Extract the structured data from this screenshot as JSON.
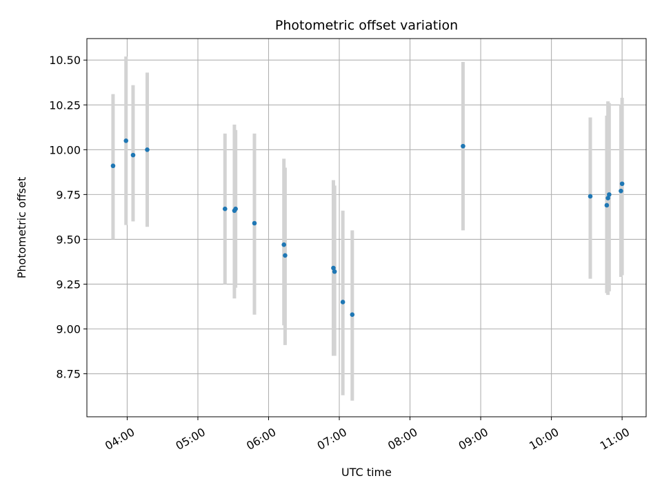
{
  "chart_data": {
    "type": "scatter",
    "title": "Photometric offset variation",
    "xlabel": "UTC time",
    "ylabel": "Photometric offset",
    "grid": true,
    "legend": "none",
    "x_axis": {
      "unit": "hours UTC",
      "range": [
        3.43,
        11.34
      ]
    },
    "ylim": [
      8.51,
      10.62
    ],
    "xticks": [
      {
        "value": 4,
        "label": "04:00"
      },
      {
        "value": 5,
        "label": "05:00"
      },
      {
        "value": 6,
        "label": "06:00"
      },
      {
        "value": 7,
        "label": "07:00"
      },
      {
        "value": 8,
        "label": "08:00"
      },
      {
        "value": 9,
        "label": "09:00"
      },
      {
        "value": 10,
        "label": "10:00"
      },
      {
        "value": 11,
        "label": "11:00"
      }
    ],
    "yticks": [
      {
        "value": 8.75,
        "label": "8.75"
      },
      {
        "value": 9.0,
        "label": "9.00"
      },
      {
        "value": 9.25,
        "label": "9.25"
      },
      {
        "value": 9.5,
        "label": "9.50"
      },
      {
        "value": 9.75,
        "label": "9.75"
      },
      {
        "value": 10.0,
        "label": "10.00"
      },
      {
        "value": 10.25,
        "label": "10.25"
      },
      {
        "value": 10.5,
        "label": "10.50"
      }
    ],
    "colors": {
      "points": "#1f77b4",
      "errorbars": "#d3d3d3",
      "grid": "#b0b0b0"
    },
    "points": [
      {
        "time": "03:48",
        "y": 9.91,
        "ylow": 9.5,
        "yhigh": 10.31
      },
      {
        "time": "03:59",
        "y": 10.05,
        "ylow": 9.58,
        "yhigh": 10.52
      },
      {
        "time": "04:05",
        "y": 9.97,
        "ylow": 9.6,
        "yhigh": 10.36
      },
      {
        "time": "04:17",
        "y": 10.0,
        "ylow": 9.57,
        "yhigh": 10.43
      },
      {
        "time": "05:23",
        "y": 9.67,
        "ylow": 9.25,
        "yhigh": 10.09
      },
      {
        "time": "05:31",
        "y": 9.66,
        "ylow": 9.17,
        "yhigh": 10.14
      },
      {
        "time": "05:32",
        "y": 9.67,
        "ylow": 9.23,
        "yhigh": 10.11
      },
      {
        "time": "05:48",
        "y": 9.59,
        "ylow": 9.08,
        "yhigh": 10.09
      },
      {
        "time": "06:13",
        "y": 9.47,
        "ylow": 9.02,
        "yhigh": 9.95
      },
      {
        "time": "06:14",
        "y": 9.41,
        "ylow": 8.91,
        "yhigh": 9.9
      },
      {
        "time": "06:55",
        "y": 9.34,
        "ylow": 8.85,
        "yhigh": 9.83
      },
      {
        "time": "06:56",
        "y": 9.32,
        "ylow": 8.85,
        "yhigh": 9.8
      },
      {
        "time": "07:03",
        "y": 9.15,
        "ylow": 8.63,
        "yhigh": 9.66
      },
      {
        "time": "07:11",
        "y": 9.08,
        "ylow": 8.6,
        "yhigh": 9.55
      },
      {
        "time": "08:45",
        "y": 10.02,
        "ylow": 9.55,
        "yhigh": 10.49
      },
      {
        "time": "10:33",
        "y": 9.74,
        "ylow": 9.28,
        "yhigh": 10.18
      },
      {
        "time": "10:47",
        "y": 9.69,
        "ylow": 9.2,
        "yhigh": 10.19
      },
      {
        "time": "10:48",
        "y": 9.73,
        "ylow": 9.19,
        "yhigh": 10.27
      },
      {
        "time": "10:49",
        "y": 9.75,
        "ylow": 9.21,
        "yhigh": 10.26
      },
      {
        "time": "10:59",
        "y": 9.77,
        "ylow": 9.29,
        "yhigh": 10.25
      },
      {
        "time": "11:00",
        "y": 9.81,
        "ylow": 9.3,
        "yhigh": 10.29
      }
    ]
  }
}
